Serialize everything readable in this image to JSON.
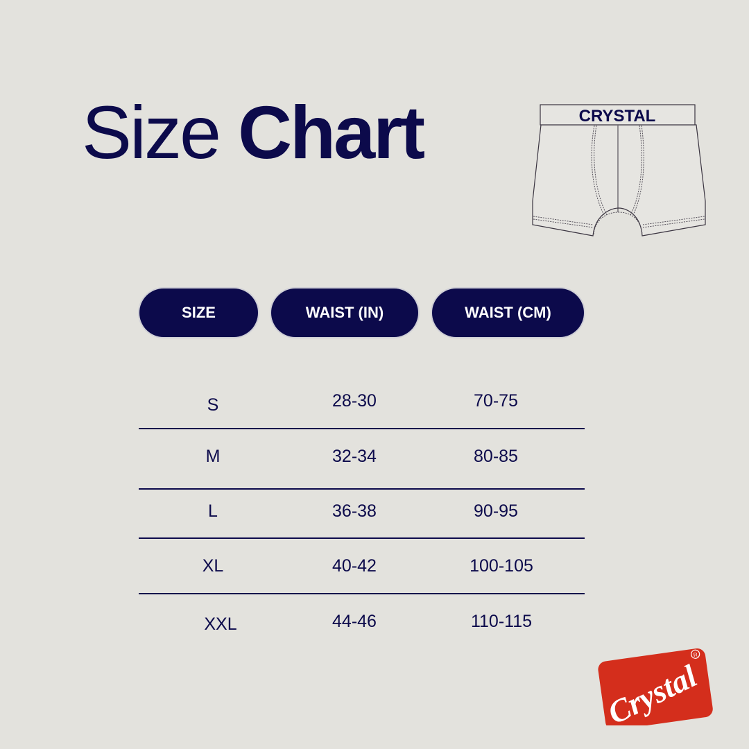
{
  "title": {
    "light": "Size",
    "bold": "Chart"
  },
  "garment": {
    "waistband_text": "CRYSTAL",
    "icon": "boxer-briefs-illustration"
  },
  "table": {
    "headers": [
      "SIZE",
      "WAIST (IN)",
      "WAIST (CM)"
    ],
    "rows": [
      {
        "size": "S",
        "waist_in": "28-30",
        "waist_cm": "70-75"
      },
      {
        "size": "M",
        "waist_in": "32-34",
        "waist_cm": "80-85"
      },
      {
        "size": "L",
        "waist_in": "36-38",
        "waist_cm": "90-95"
      },
      {
        "size": "XL",
        "waist_in": "40-42",
        "waist_cm": "100-105"
      },
      {
        "size": "XXL",
        "waist_in": "44-46",
        "waist_cm": "110-115"
      }
    ]
  },
  "logo": {
    "text": "Crystal",
    "mark": "®"
  },
  "colors": {
    "navy": "#0c0a4b",
    "background": "#e3e2dd",
    "logo_red": "#d42e1c"
  }
}
